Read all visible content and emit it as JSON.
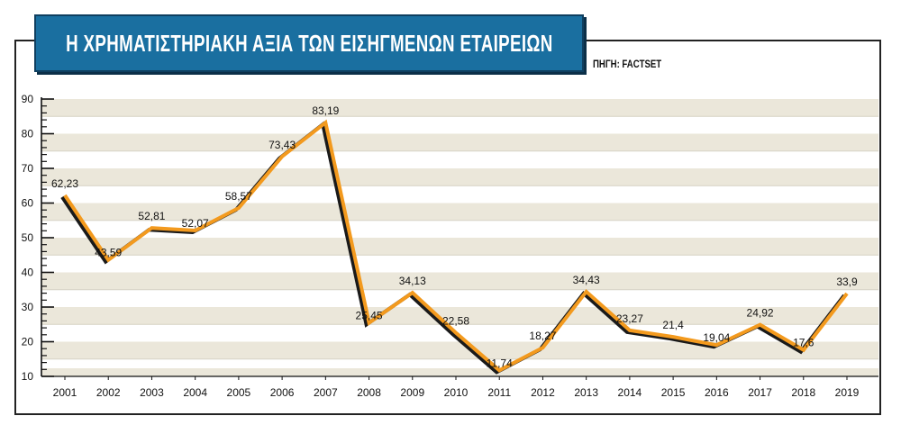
{
  "title": "Η ΧΡΗΜΑΤΙΣΤΗΡΙΑΚΗ ΑΞΙΑ ΤΩΝ ΕΙΣΗΓΜΕΝΩΝ ΕΤΑΙΡΕΙΩΝ",
  "source": "ΠΗΓΗ: FACTSET",
  "colors": {
    "title_bg": "#1a6fa0",
    "band": "#ebe7da",
    "line_main": "#f39a1e",
    "line_shadow": "#1a1a1a"
  },
  "chart_data": {
    "type": "line",
    "title": "Η ΧΡΗΜΑΤΙΣΤΗΡΙΑΚΗ ΑΞΙΑ ΤΩΝ ΕΙΣΗΓΜΕΝΩΝ ΕΤΑΙΡΕΙΩΝ",
    "x": [
      "2001",
      "2002",
      "2003",
      "2004",
      "2005",
      "2006",
      "2007",
      "2008",
      "2009",
      "2010",
      "2011",
      "2012",
      "2013",
      "2014",
      "2015",
      "2016",
      "2017",
      "2018",
      "2019"
    ],
    "values": [
      62.23,
      43.59,
      52.81,
      52.07,
      58.57,
      73.43,
      83.19,
      25.45,
      34.13,
      22.58,
      11.74,
      18.27,
      34.43,
      23.27,
      21.4,
      19.04,
      24.92,
      17.6,
      33.9
    ],
    "labels": [
      "62,23",
      "43,59",
      "52,81",
      "52,07",
      "58,57",
      "73,43",
      "83,19",
      "25,45",
      "34,13",
      "22,58",
      "11,74",
      "18,27",
      "34,43",
      "23,27",
      "21,4",
      "19,04",
      "24,92",
      "17,6",
      "33,9"
    ],
    "yticks": [
      "10",
      "20",
      "30",
      "40",
      "50",
      "60",
      "70",
      "80",
      "90"
    ],
    "ylim": [
      10,
      90
    ],
    "xlabel": "",
    "ylabel": "",
    "grid": true,
    "legend": "none"
  }
}
